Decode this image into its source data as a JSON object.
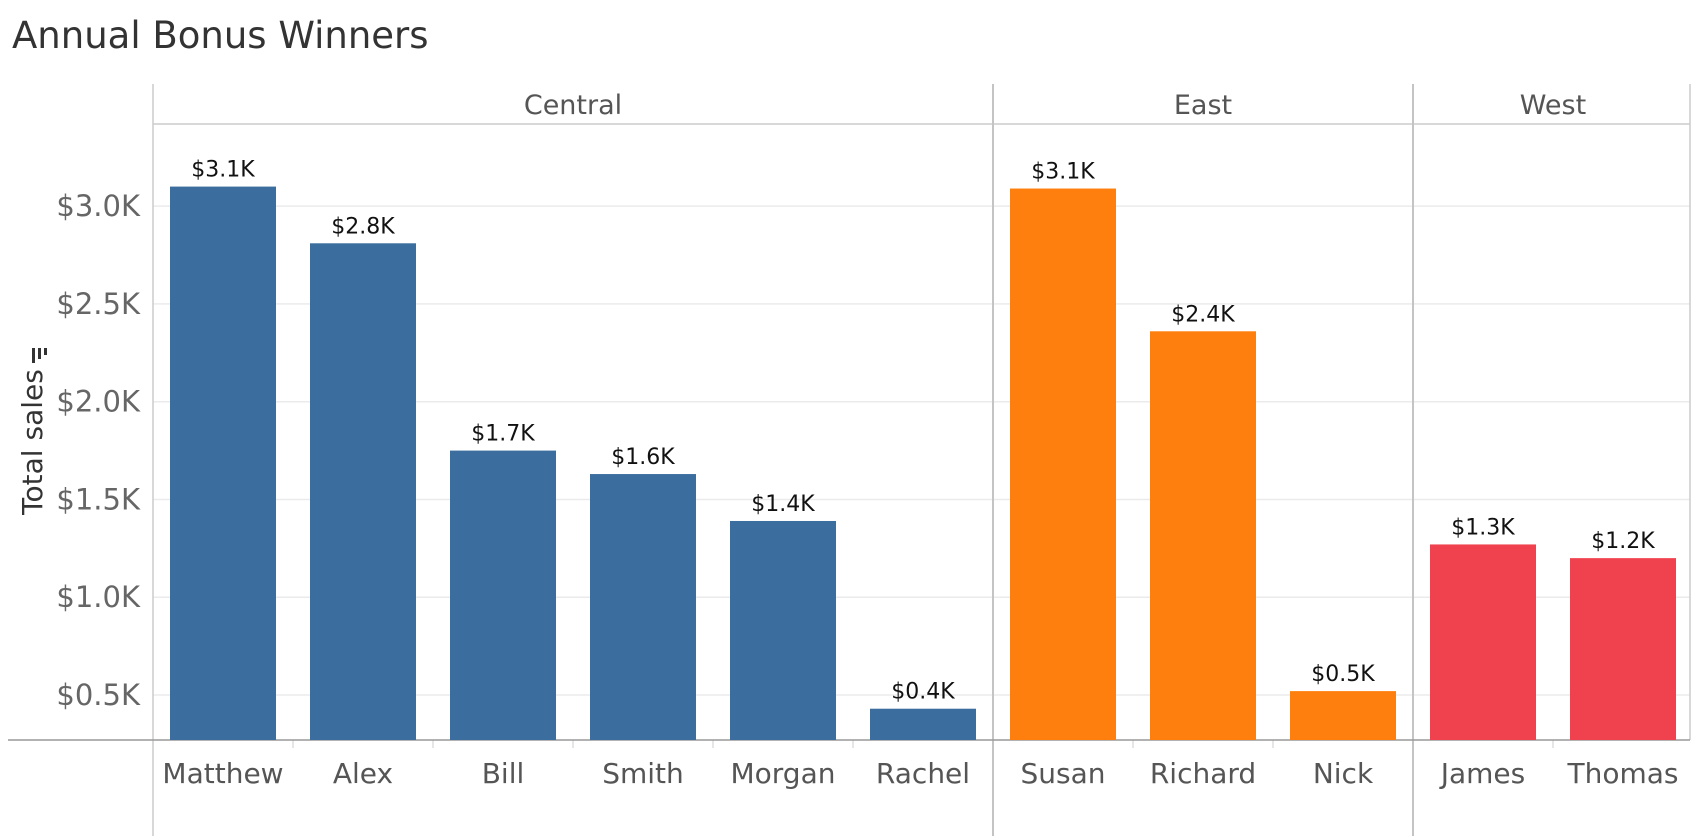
{
  "chart_data": {
    "type": "bar",
    "title": "Annual Bonus Winners",
    "ylabel": "Total sales",
    "xlabel": "",
    "ylim": [
      0.27,
      3.42
    ],
    "yticks": [
      0.5,
      1.0,
      1.5,
      2.0,
      2.5,
      3.0
    ],
    "ytick_labels": [
      "$0.5K",
      "$1.0K",
      "$1.5K",
      "$2.0K",
      "$2.5K",
      "$3.0K"
    ],
    "grid": true,
    "panes": [
      {
        "name": "Central",
        "color": "#3b6e9f",
        "categories": [
          "Matthew",
          "Alex",
          "Bill",
          "Smith",
          "Morgan",
          "Rachel"
        ],
        "values": [
          3.1,
          2.81,
          1.75,
          1.63,
          1.39,
          0.43
        ],
        "labels": [
          "$3.1K",
          "$2.8K",
          "$1.7K",
          "$1.6K",
          "$1.4K",
          "$0.4K"
        ]
      },
      {
        "name": "East",
        "color": "#ff7f0e",
        "categories": [
          "Susan",
          "Richard",
          "Nick"
        ],
        "values": [
          3.09,
          2.36,
          0.52
        ],
        "labels": [
          "$3.1K",
          "$2.4K",
          "$0.5K"
        ]
      },
      {
        "name": "West",
        "color": "#ef424e",
        "categories": [
          "James",
          "Thomas"
        ],
        "values": [
          1.27,
          1.2
        ],
        "labels": [
          "$1.3K",
          "$1.2K"
        ]
      }
    ]
  }
}
